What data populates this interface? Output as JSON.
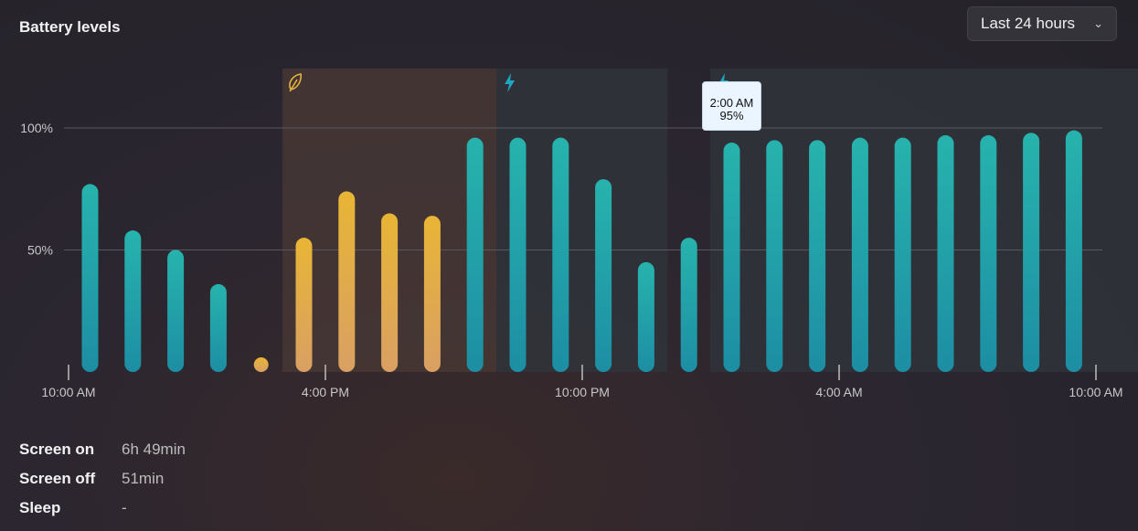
{
  "header": {
    "title": "Battery levels"
  },
  "range_select": {
    "selected": "Last 24 hours"
  },
  "tooltip": {
    "time": "2:00 AM",
    "value": "95%"
  },
  "stats": [
    {
      "label": "Screen on",
      "value": "6h 49min"
    },
    {
      "label": "Screen off",
      "value": "51min"
    },
    {
      "label": "Sleep",
      "value": "-"
    }
  ],
  "colors": {
    "normal": "#26b0b4",
    "saver": "#e6b43c",
    "saver_band": "#4a3a35",
    "charging_band": "#2f343b",
    "charging_icon": "#1fa7c2"
  },
  "chart_data": {
    "type": "bar",
    "y_tick_labels": [
      "100%",
      "50%"
    ],
    "x_tick_labels": [
      "10:00 AM",
      "4:00 PM",
      "10:00 PM",
      "4:00 AM",
      "10:00 AM"
    ],
    "ylim": [
      0,
      100
    ],
    "grid": true,
    "values": [
      77,
      58,
      50,
      36,
      3,
      55,
      74,
      65,
      64,
      96,
      96,
      96,
      79,
      45,
      55,
      94,
      95,
      95,
      96,
      96,
      97,
      97,
      98,
      99
    ],
    "states": [
      "normal",
      "normal",
      "normal",
      "normal",
      "saver",
      "saver",
      "saver",
      "saver",
      "saver",
      "normal",
      "normal",
      "normal",
      "normal",
      "normal",
      "normal",
      "normal",
      "normal",
      "normal",
      "normal",
      "normal",
      "normal",
      "normal",
      "normal",
      "normal"
    ],
    "bands": [
      {
        "kind": "saver",
        "icon": "leaf-icon",
        "from": 4.5,
        "to": 9.5
      },
      {
        "kind": "charging",
        "icon": "lightning-icon",
        "from": 9.5,
        "to": 13.5
      },
      {
        "kind": "charging",
        "icon": "lightning-icon",
        "from": 14.5,
        "to": 24.5
      }
    ]
  }
}
